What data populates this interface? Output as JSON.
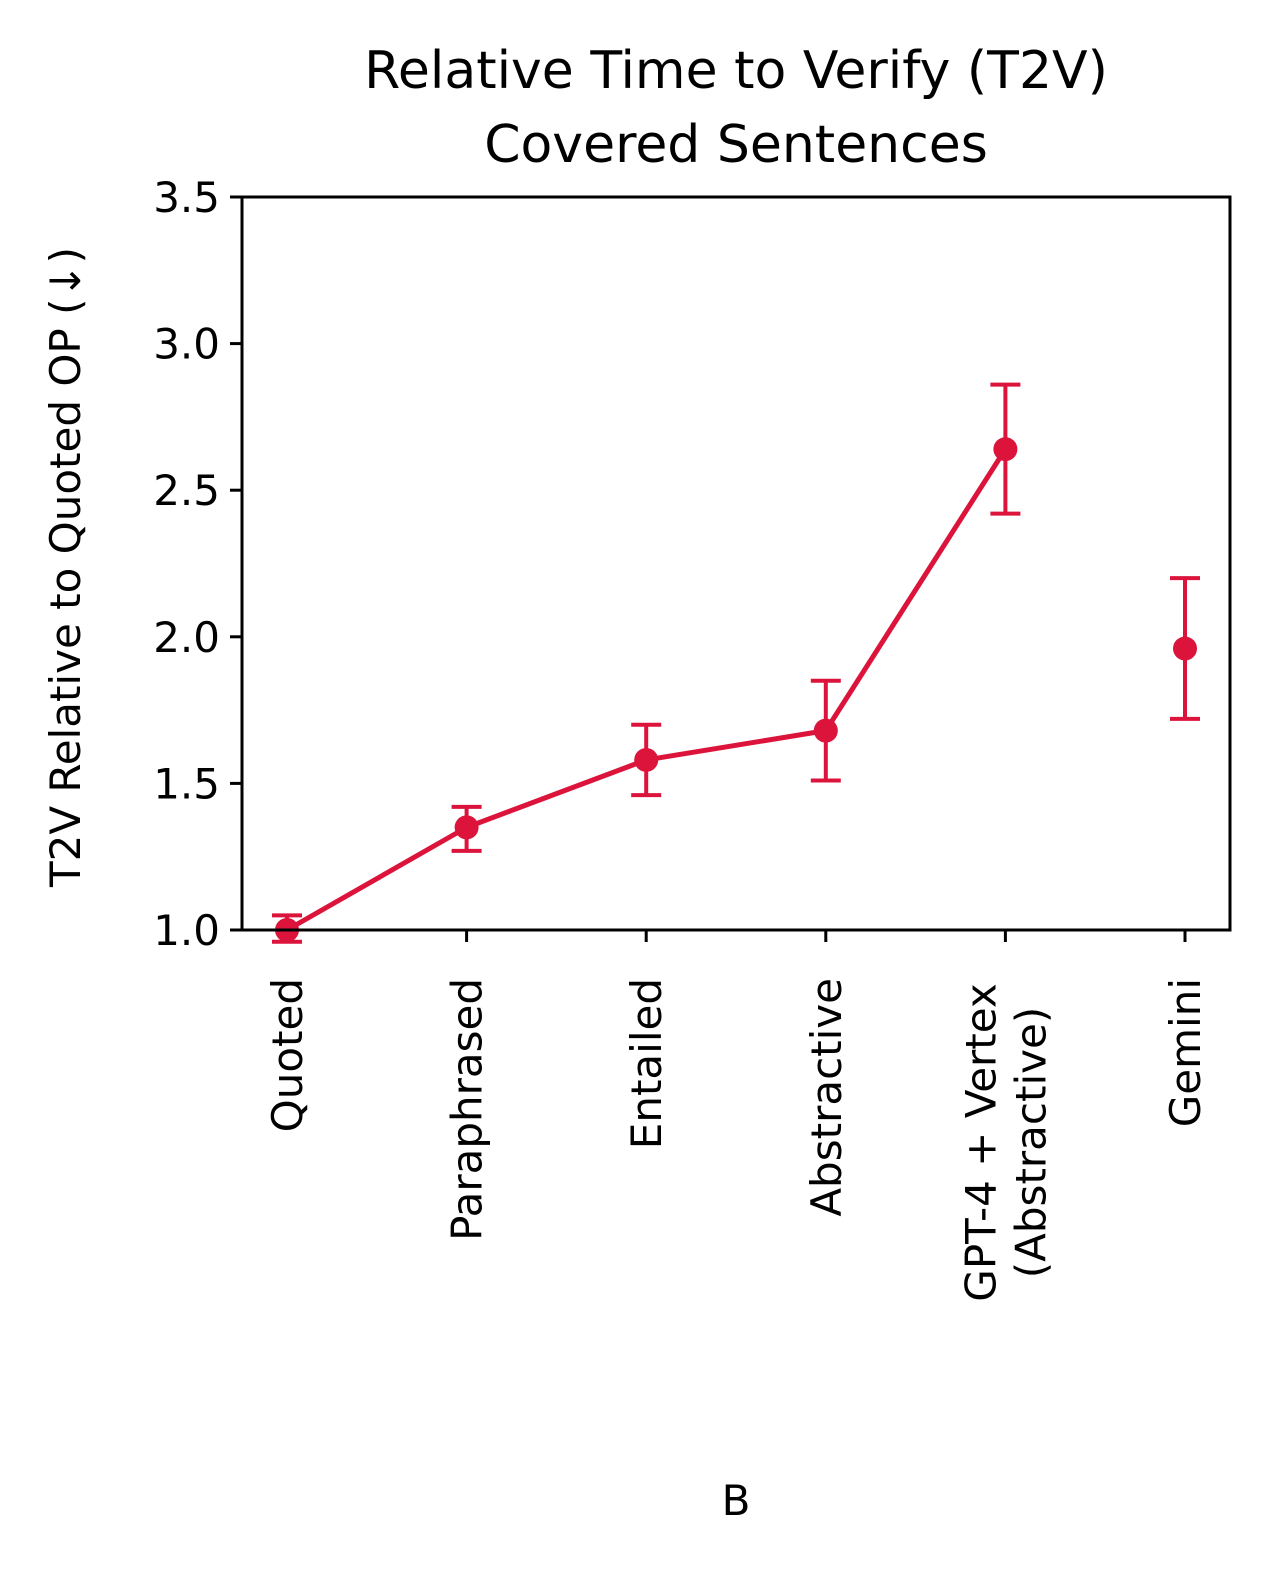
{
  "chart_data": {
    "type": "line",
    "title": [
      "Relative Time to Verify (T2V)",
      "Covered Sentences"
    ],
    "ylabel": "T2V Relative to Quoted OP (↓)",
    "xlabel": "",
    "panel_label": "B",
    "ylim": [
      1.0,
      3.5
    ],
    "yticks": [
      "1.0",
      "1.5",
      "2.0",
      "2.5",
      "3.0",
      "3.5"
    ],
    "categories": [
      [
        "Quoted"
      ],
      [
        "Paraphrased"
      ],
      [
        "Entailed"
      ],
      [
        "Abstractive"
      ],
      [
        "GPT-4 + Vertex",
        "(Abstractive)"
      ],
      [
        "Gemini"
      ]
    ],
    "series": [
      {
        "color": "#dc143c",
        "values": [
          1.0,
          1.35,
          1.58,
          1.68,
          2.64,
          1.96
        ],
        "err_low": [
          0.96,
          1.27,
          1.46,
          1.51,
          2.42,
          1.72
        ],
        "err_high": [
          1.05,
          1.42,
          1.7,
          1.85,
          2.86,
          2.2
        ],
        "connected": [
          true,
          true,
          true,
          true,
          true,
          false
        ]
      }
    ],
    "grid": false
  }
}
